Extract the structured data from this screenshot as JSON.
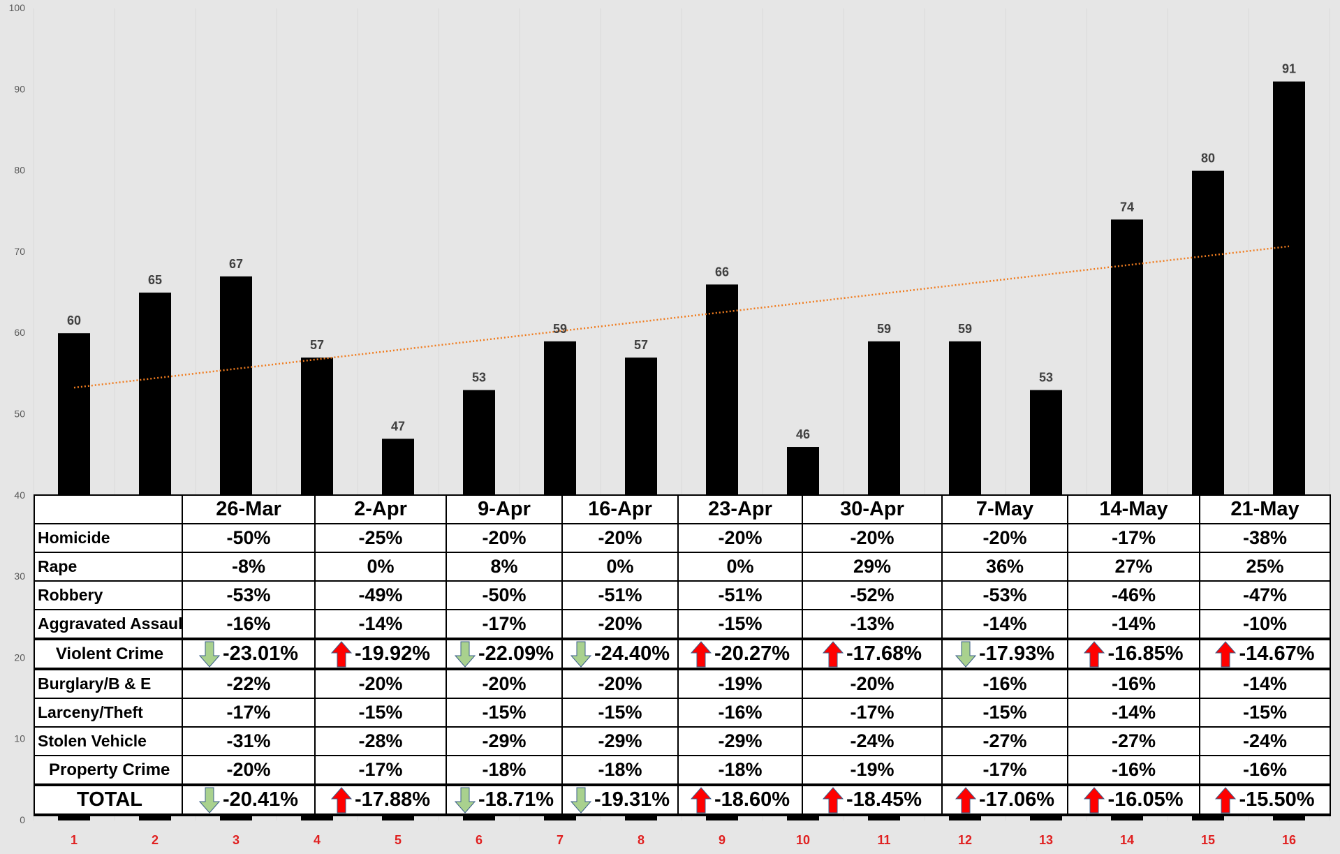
{
  "chart_data": {
    "type": "bar",
    "categories": [
      "1",
      "2",
      "3",
      "4",
      "5",
      "6",
      "7",
      "8",
      "9",
      "10",
      "11",
      "12",
      "13",
      "14",
      "15",
      "16"
    ],
    "series": [
      {
        "values": [
          60,
          65,
          67,
          57,
          47,
          53,
          59,
          57,
          66,
          46,
          59,
          59,
          53,
          74,
          80,
          91
        ]
      }
    ],
    "ylim": [
      0,
      100
    ],
    "yticks": [
      0,
      10,
      20,
      30,
      40,
      50,
      60,
      70,
      80,
      90,
      100
    ],
    "trendline": {
      "type": "linear",
      "start": 53.3,
      "end": 70.7,
      "color": "#f07c1f"
    },
    "bar_color": "#000000",
    "xtick_color": "#e02020",
    "grid": true,
    "background": "#e6e6e6"
  },
  "table": {
    "columns": [
      "26-Mar",
      "2-Apr",
      "9-Apr",
      "16-Apr",
      "23-Apr",
      "30-Apr",
      "7-May",
      "14-May",
      "21-May"
    ],
    "rows": [
      {
        "label": "Homicide",
        "values": [
          "-50%",
          "-25%",
          "-20%",
          "-20%",
          "-20%",
          "-20%",
          "-20%",
          "-17%",
          "-38%"
        ]
      },
      {
        "label": "Rape",
        "values": [
          "-8%",
          "0%",
          "8%",
          "0%",
          "0%",
          "29%",
          "36%",
          "27%",
          "25%"
        ]
      },
      {
        "label": "Robbery",
        "values": [
          "-53%",
          "-49%",
          "-50%",
          "-51%",
          "-51%",
          "-52%",
          "-53%",
          "-46%",
          "-47%"
        ]
      },
      {
        "label": "Aggravated Assault",
        "values": [
          "-16%",
          "-14%",
          "-17%",
          "-20%",
          "-15%",
          "-13%",
          "-14%",
          "-14%",
          "-10%"
        ]
      },
      {
        "label": "Violent Crime",
        "summary": true,
        "values": [
          "-23.01%",
          "-19.92%",
          "-22.09%",
          "-24.40%",
          "-20.27%",
          "-17.68%",
          "-17.93%",
          "-16.85%",
          "-14.67%"
        ],
        "arrows": [
          "down-arrow",
          "up-arrow",
          "down-arrow",
          "down-arrow",
          "up-arrow",
          "up-arrow",
          "down-arrow",
          "up-arrow",
          "up-arrow"
        ]
      },
      {
        "label": "Burglary/B & E",
        "values": [
          "-22%",
          "-20%",
          "-20%",
          "-20%",
          "-19%",
          "-20%",
          "-16%",
          "-16%",
          "-14%"
        ]
      },
      {
        "label": "Larceny/Theft",
        "values": [
          "-17%",
          "-15%",
          "-15%",
          "-15%",
          "-16%",
          "-17%",
          "-15%",
          "-14%",
          "-15%"
        ]
      },
      {
        "label": "Stolen Vehicle",
        "values": [
          "-31%",
          "-28%",
          "-29%",
          "-29%",
          "-29%",
          "-24%",
          "-27%",
          "-27%",
          "-24%"
        ]
      },
      {
        "label": "Property Crime",
        "labelCenter": true,
        "values": [
          "-20%",
          "-17%",
          "-18%",
          "-18%",
          "-18%",
          "-19%",
          "-17%",
          "-16%",
          "-16%"
        ]
      },
      {
        "label": "TOTAL",
        "summary": true,
        "total": true,
        "values": [
          "-20.41%",
          "-17.88%",
          "-18.71%",
          "-19.31%",
          "-18.60%",
          "-18.45%",
          "-17.06%",
          "-16.05%",
          "-15.50%"
        ],
        "arrows": [
          "down-arrow",
          "up-arrow",
          "down-arrow",
          "down-arrow",
          "up-arrow",
          "up-arrow",
          "up-arrow",
          "up-arrow",
          "up-arrow"
        ]
      }
    ],
    "arrow_colors": {
      "up-arrow": "#ff0000",
      "down-arrow": "#a9d18e"
    }
  }
}
